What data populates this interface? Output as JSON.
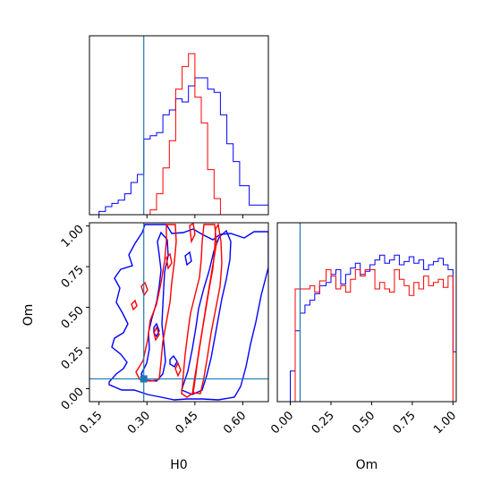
{
  "chart_data": {
    "type": "corner",
    "parameters": [
      "H0",
      "Om"
    ],
    "truth": {
      "H0": 0.29,
      "Om": 0.06,
      "color": "#1f77b4"
    },
    "series": [
      {
        "color": "#0000ff"
      },
      {
        "color": "#ff0000"
      }
    ],
    "panels": [
      {
        "id": "H0-marginal",
        "type": "histogram",
        "xlim": [
          0.12,
          0.68
        ],
        "bin_edges": [
          0.12,
          0.15,
          0.17,
          0.19,
          0.21,
          0.23,
          0.25,
          0.27,
          0.29,
          0.31,
          0.33,
          0.35,
          0.37,
          0.39,
          0.41,
          0.43,
          0.45,
          0.47,
          0.49,
          0.51,
          0.53,
          0.55,
          0.57,
          0.59,
          0.62,
          0.68
        ],
        "blue_counts": [
          0.0,
          0.02,
          0.05,
          0.07,
          0.09,
          0.13,
          0.2,
          0.25,
          0.47,
          0.49,
          0.51,
          0.62,
          0.65,
          0.72,
          0.7,
          0.8,
          0.85,
          0.85,
          0.78,
          0.76,
          0.62,
          0.44,
          0.33,
          0.18,
          0.06
        ],
        "red_counts": [
          0.0,
          0.0,
          0.0,
          0.0,
          0.0,
          0.0,
          0.0,
          0.0,
          0.0,
          0.03,
          0.13,
          0.29,
          0.46,
          0.78,
          0.92,
          1.0,
          0.73,
          0.57,
          0.28,
          0.1,
          0.0,
          0.0,
          0.0,
          0.0,
          0.0
        ]
      },
      {
        "id": "Om-marginal",
        "type": "histogram",
        "xlim": [
          -0.08,
          1.02
        ],
        "xticks": [
          0.0,
          0.25,
          0.5,
          0.75,
          1.0
        ],
        "xtick_labels": [
          "0.00",
          "0.25",
          "0.50",
          "0.75",
          "1.00"
        ],
        "xlabel": "Om",
        "bin_edges": [
          -0.08,
          -0.02,
          0.0,
          0.03,
          0.06,
          0.09,
          0.12,
          0.15,
          0.18,
          0.22,
          0.25,
          0.28,
          0.31,
          0.34,
          0.37,
          0.4,
          0.43,
          0.46,
          0.49,
          0.52,
          0.55,
          0.58,
          0.61,
          0.64,
          0.67,
          0.7,
          0.73,
          0.76,
          0.79,
          0.82,
          0.85,
          0.88,
          0.91,
          0.94,
          0.97,
          1.0,
          1.02
        ],
        "blue_counts": [
          0.0,
          0.0,
          0.19,
          0.44,
          0.55,
          0.6,
          0.63,
          0.67,
          0.72,
          0.74,
          0.79,
          0.82,
          0.73,
          0.79,
          0.83,
          0.86,
          0.79,
          0.81,
          0.85,
          0.88,
          0.91,
          0.86,
          0.88,
          0.91,
          0.85,
          0.87,
          0.9,
          0.86,
          0.88,
          0.82,
          0.85,
          0.87,
          0.89,
          0.85,
          0.82,
          0.31
        ],
        "red_counts": [
          0.0,
          0.0,
          0.0,
          0.7,
          0.7,
          0.7,
          0.72,
          0.68,
          0.75,
          0.82,
          0.78,
          0.7,
          0.72,
          0.68,
          0.76,
          0.82,
          0.78,
          0.82,
          0.82,
          0.7,
          0.74,
          0.7,
          0.68,
          0.82,
          0.76,
          0.72,
          0.66,
          0.74,
          0.7,
          0.78,
          0.72,
          0.74,
          0.76,
          0.71,
          0.78,
          0.0
        ]
      },
      {
        "id": "H0-Om-joint",
        "type": "contour",
        "xlim": [
          0.12,
          0.68
        ],
        "ylim": [
          -0.08,
          1.02
        ],
        "xticks": [
          0.15,
          0.3,
          0.45,
          0.6
        ],
        "xtick_labels": [
          "0.15",
          "0.30",
          "0.45",
          "0.60"
        ],
        "yticks": [
          0.0,
          0.25,
          0.5,
          0.75,
          1.0
        ],
        "ytick_labels": [
          "0.00",
          "0.25",
          "0.50",
          "0.75",
          "1.00"
        ],
        "xlabel": "H0",
        "ylabel": "Om"
      }
    ]
  }
}
